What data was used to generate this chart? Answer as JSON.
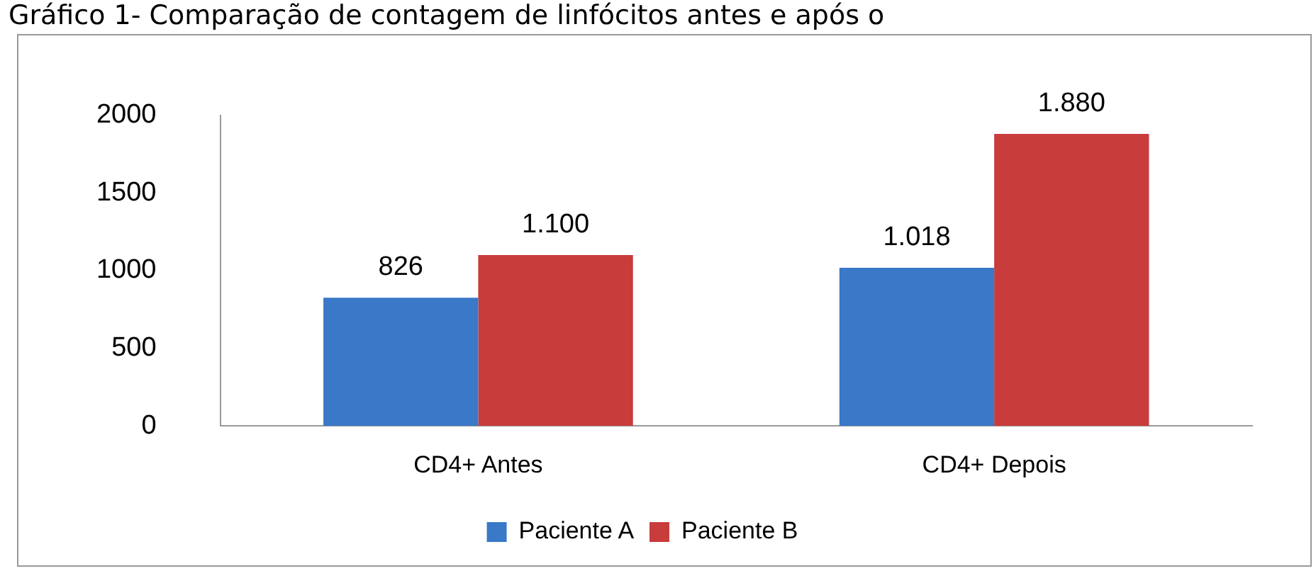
{
  "chart_data": {
    "type": "bar",
    "title": "Gráfico 1- Comparação de contagem de linfócitos antes e após o",
    "categories": [
      "CD4+ Antes",
      "CD4+ Depois"
    ],
    "series": [
      {
        "name": "Paciente A",
        "color": "#3a78c8",
        "values": [
          826,
          1018
        ],
        "value_labels": [
          "826",
          "1.018"
        ]
      },
      {
        "name": "Paciente B",
        "color": "#c83c3c",
        "values": [
          1100,
          1880
        ],
        "value_labels": [
          "1.100",
          "1.880"
        ]
      }
    ],
    "ylim": [
      0,
      2000
    ],
    "yticks": [
      0,
      500,
      1000,
      1500,
      2000
    ],
    "grid": false,
    "legend": "bottom"
  }
}
